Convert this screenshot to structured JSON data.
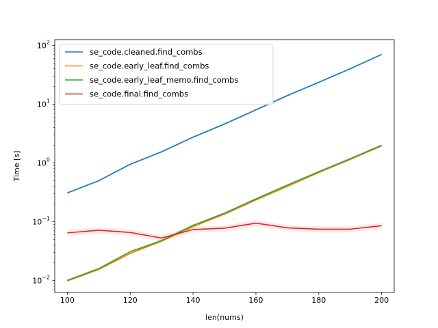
{
  "chart_data": {
    "type": "line",
    "title": "",
    "xlabel": "len(nums)",
    "ylabel": "Time [s]",
    "xlim": [
      96,
      204
    ],
    "ylim": [
      0.0063,
      125
    ],
    "yscale": "log",
    "grid": false,
    "legend_position": "top-left",
    "x_ticks": [
      100,
      120,
      140,
      160,
      180,
      200
    ],
    "x_tick_labels": [
      "100",
      "120",
      "140",
      "160",
      "180",
      "200"
    ],
    "y_ticks": [
      0.01,
      0.1,
      1,
      10,
      100
    ],
    "y_tick_labels": [
      {
        "base": "10",
        "exp": "−2"
      },
      {
        "base": "10",
        "exp": "−1"
      },
      {
        "base": "10",
        "exp": "0"
      },
      {
        "base": "10",
        "exp": "1"
      },
      {
        "base": "10",
        "exp": "2"
      }
    ],
    "x": [
      100,
      110,
      120,
      130,
      140,
      150,
      160,
      170,
      180,
      190,
      200
    ],
    "series": [
      {
        "name": "se_code.cleaned.find_combs",
        "color": "#1f77b4",
        "values": [
          0.31,
          0.5,
          0.95,
          1.55,
          2.75,
          4.6,
          8.0,
          14.0,
          23.5,
          40.0,
          70.0
        ]
      },
      {
        "name": "se_code.early_leaf.find_combs",
        "color": "#ff7f0e",
        "values": [
          0.0099,
          0.0155,
          0.029,
          0.047,
          0.083,
          0.135,
          0.235,
          0.4,
          0.69,
          1.15,
          1.95
        ]
      },
      {
        "name": "se_code.early_leaf_memo.find_combs",
        "color": "#2ca02c",
        "values": [
          0.0101,
          0.016,
          0.031,
          0.048,
          0.087,
          0.14,
          0.245,
          0.42,
          0.71,
          1.18,
          2.0
        ]
      },
      {
        "name": "se_code.final.find_combs",
        "color": "#d62728",
        "values": [
          0.065,
          0.072,
          0.066,
          0.053,
          0.074,
          0.078,
          0.095,
          0.079,
          0.075,
          0.075,
          0.086
        ]
      }
    ]
  }
}
